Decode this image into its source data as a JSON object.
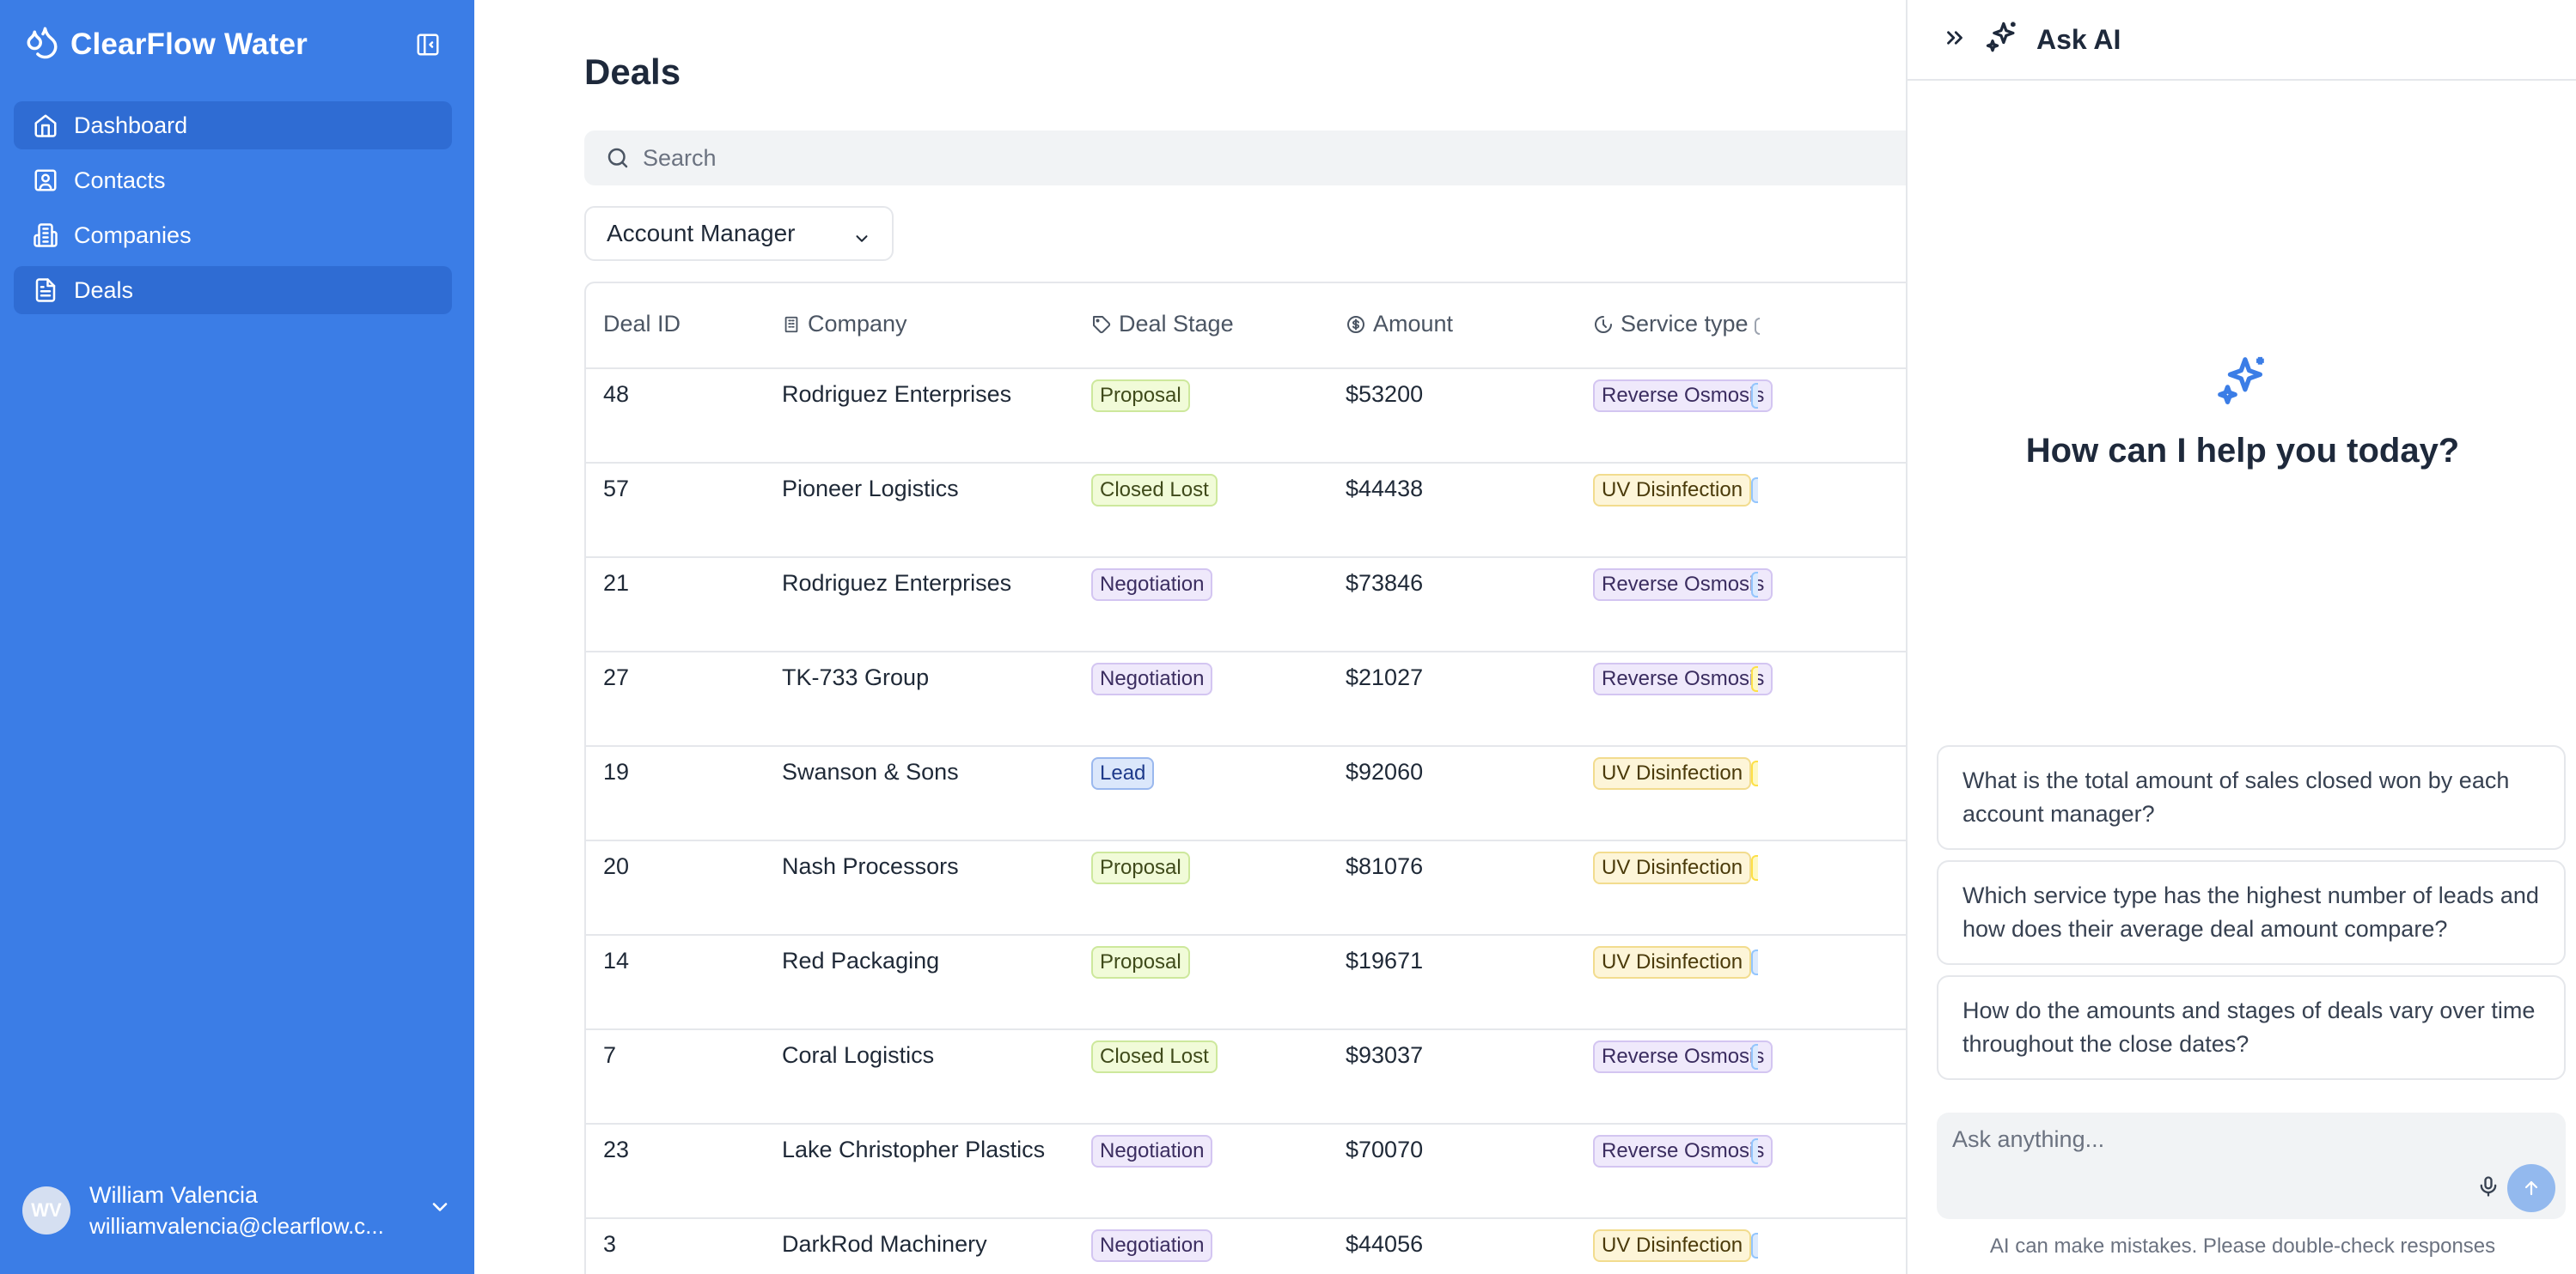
{
  "app": {
    "name": "ClearFlow Water"
  },
  "sidebar": {
    "items": [
      {
        "label": "Dashboard",
        "icon": "home-icon",
        "active": true
      },
      {
        "label": "Contacts",
        "icon": "contact-card-icon",
        "active": false
      },
      {
        "label": "Companies",
        "icon": "building-icon",
        "active": false
      },
      {
        "label": "Deals",
        "icon": "document-icon",
        "active": true
      }
    ],
    "user": {
      "initials": "WV",
      "name": "William Valencia",
      "email": "williamvalencia@clearflow.c..."
    }
  },
  "main": {
    "title": "Deals",
    "search_placeholder": "Search",
    "filter_label": "Account Manager",
    "columns": [
      "Deal ID",
      "Company",
      "Deal Stage",
      "Amount",
      "Service type"
    ],
    "rows": [
      {
        "id": "48",
        "company": "Rodriguez Enterprises",
        "stage": "Proposal",
        "amount": "$53200",
        "service": "Reverse Osmosis",
        "extra": "blue"
      },
      {
        "id": "57",
        "company": "Pioneer Logistics",
        "stage": "Closed Lost",
        "amount": "$44438",
        "service": "UV Disinfection",
        "extra": "blue"
      },
      {
        "id": "21",
        "company": "Rodriguez Enterprises",
        "stage": "Negotiation",
        "amount": "$73846",
        "service": "Reverse Osmosis",
        "extra": "blue"
      },
      {
        "id": "27",
        "company": "TK-733 Group",
        "stage": "Negotiation",
        "amount": "$21027",
        "service": "Reverse Osmosis",
        "extra": "yellow"
      },
      {
        "id": "19",
        "company": "Swanson & Sons",
        "stage": "Lead",
        "amount": "$92060",
        "service": "UV Disinfection",
        "extra": "yellow"
      },
      {
        "id": "20",
        "company": "Nash Processors",
        "stage": "Proposal",
        "amount": "$81076",
        "service": "UV Disinfection",
        "extra": "yellow"
      },
      {
        "id": "14",
        "company": "Red Packaging",
        "stage": "Proposal",
        "amount": "$19671",
        "service": "UV Disinfection",
        "extra": "blue"
      },
      {
        "id": "7",
        "company": "Coral Logistics",
        "stage": "Closed Lost",
        "amount": "$93037",
        "service": "Reverse Osmosis",
        "extra": "blue"
      },
      {
        "id": "23",
        "company": "Lake Christopher Plastics",
        "stage": "Negotiation",
        "amount": "$70070",
        "service": "Reverse Osmosis",
        "extra": "blue"
      },
      {
        "id": "3",
        "company": "DarkRod Machinery",
        "stage": "Negotiation",
        "amount": "$44056",
        "service": "UV Disinfection",
        "extra": "blue"
      }
    ]
  },
  "ai": {
    "title": "Ask AI",
    "hero": "How can I help you today?",
    "suggestions": [
      "What is the total amount of sales closed won by each account manager?",
      "Which service type has the highest number of leads and how does their average deal amount compare?",
      "How do the amounts and stages of deals vary over time throughout the close dates?"
    ],
    "input_placeholder": "Ask anything...",
    "disclaimer": "AI can make mistakes. Please double-check responses"
  },
  "colors": {
    "sidebar": "#3b7de6",
    "accent": "#3b7de6"
  }
}
